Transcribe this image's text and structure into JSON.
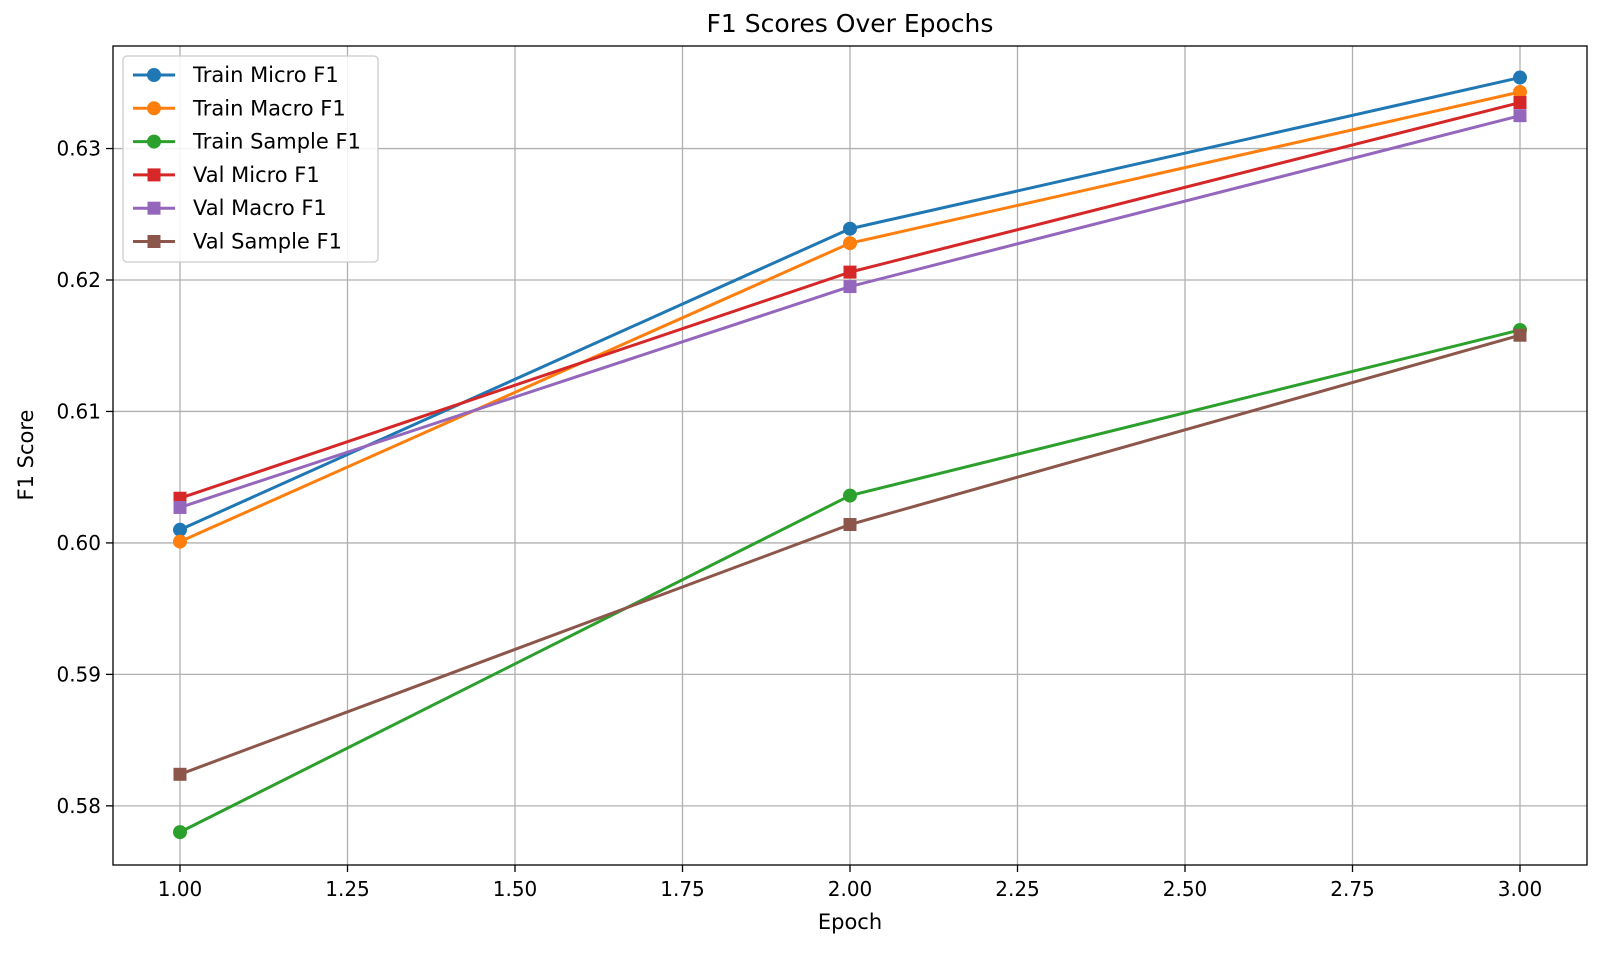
{
  "chart_data": {
    "type": "line",
    "title": "F1 Scores Over Epochs",
    "xlabel": "Epoch",
    "ylabel": "F1 Score",
    "x": [
      1.0,
      2.0,
      3.0
    ],
    "xlim": [
      0.9,
      3.1
    ],
    "ylim": [
      0.5755,
      0.6378
    ],
    "xticks": [
      "1.00",
      "1.25",
      "1.50",
      "1.75",
      "2.00",
      "2.25",
      "2.50",
      "2.75",
      "3.00"
    ],
    "xtick_values": [
      1.0,
      1.25,
      1.5,
      1.75,
      2.0,
      2.25,
      2.5,
      2.75,
      3.0
    ],
    "yticks": [
      "0.58",
      "0.59",
      "0.60",
      "0.61",
      "0.62",
      "0.63"
    ],
    "ytick_values": [
      0.58,
      0.59,
      0.6,
      0.61,
      0.62,
      0.63
    ],
    "grid": true,
    "legend_position": "top-left",
    "series": [
      {
        "name": "Train Micro F1",
        "values": [
          0.601,
          0.6239,
          0.6354
        ],
        "color": "#1f77b4",
        "marker": "circle"
      },
      {
        "name": "Train Macro F1",
        "values": [
          0.6001,
          0.6228,
          0.6343
        ],
        "color": "#ff7f0e",
        "marker": "circle"
      },
      {
        "name": "Train Sample F1",
        "values": [
          0.578,
          0.6036,
          0.6162
        ],
        "color": "#2ca02c",
        "marker": "circle"
      },
      {
        "name": "Val Micro F1",
        "values": [
          0.6034,
          0.6206,
          0.6335
        ],
        "color": "#d62728",
        "marker": "square"
      },
      {
        "name": "Val Macro F1",
        "values": [
          0.6027,
          0.6195,
          0.6325
        ],
        "color": "#9467bd",
        "marker": "square"
      },
      {
        "name": "Val Sample F1",
        "values": [
          0.5824,
          0.6014,
          0.6158
        ],
        "color": "#8c564b",
        "marker": "square"
      }
    ]
  }
}
